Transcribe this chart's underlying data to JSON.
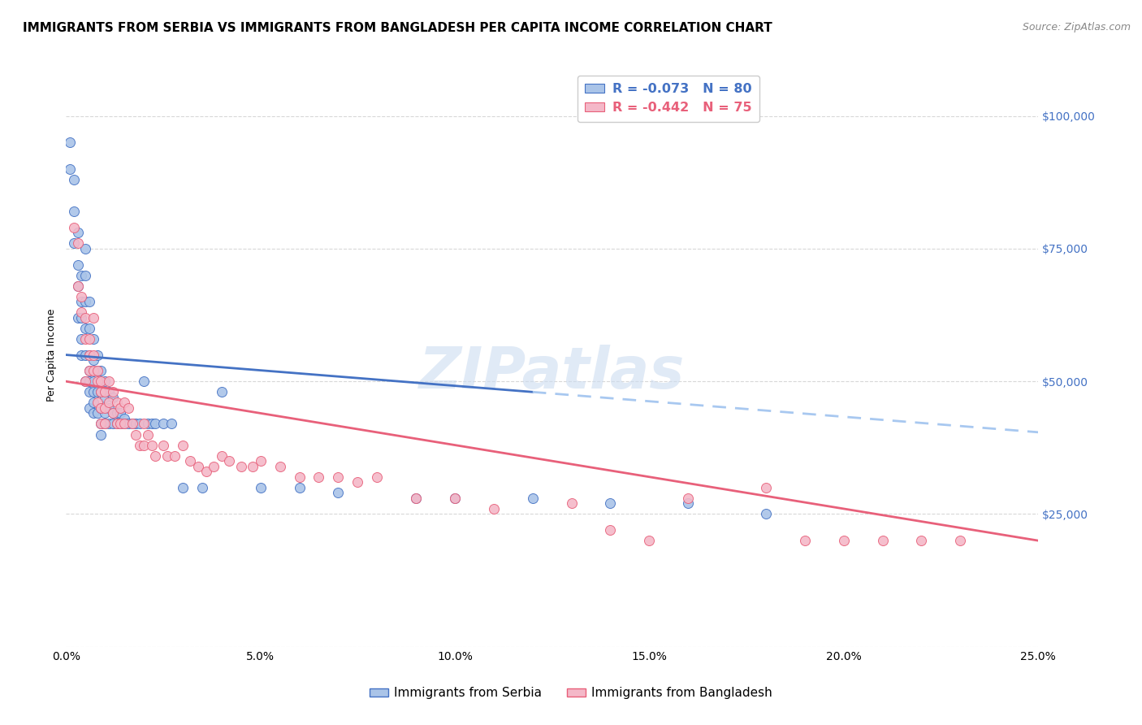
{
  "title": "IMMIGRANTS FROM SERBIA VS IMMIGRANTS FROM BANGLADESH PER CAPITA INCOME CORRELATION CHART",
  "source": "Source: ZipAtlas.com",
  "ylabel": "Per Capita Income",
  "watermark": "ZIPatlas",
  "serbia_R": -0.073,
  "serbia_N": 80,
  "bangladesh_R": -0.442,
  "bangladesh_N": 75,
  "serbia_color": "#aac4e8",
  "bangladesh_color": "#f4b8c8",
  "serbia_line_color": "#4472c4",
  "bangladesh_line_color": "#e8607a",
  "trendline_extend_color_serbia": "#a8c8f0",
  "xlim": [
    0.0,
    0.25
  ],
  "ylim": [
    0,
    110000
  ],
  "yticks": [
    0,
    25000,
    50000,
    75000,
    100000
  ],
  "ytick_labels": [
    "",
    "$25,000",
    "$50,000",
    "$75,000",
    "$100,000"
  ],
  "serbia_x": [
    0.001,
    0.001,
    0.002,
    0.002,
    0.002,
    0.003,
    0.003,
    0.003,
    0.003,
    0.004,
    0.004,
    0.004,
    0.004,
    0.004,
    0.005,
    0.005,
    0.005,
    0.005,
    0.005,
    0.005,
    0.006,
    0.006,
    0.006,
    0.006,
    0.006,
    0.006,
    0.006,
    0.007,
    0.007,
    0.007,
    0.007,
    0.007,
    0.007,
    0.008,
    0.008,
    0.008,
    0.008,
    0.009,
    0.009,
    0.009,
    0.009,
    0.009,
    0.01,
    0.01,
    0.01,
    0.01,
    0.011,
    0.011,
    0.011,
    0.012,
    0.012,
    0.012,
    0.013,
    0.013,
    0.014,
    0.014,
    0.015,
    0.015,
    0.016,
    0.017,
    0.018,
    0.019,
    0.02,
    0.021,
    0.022,
    0.023,
    0.025,
    0.027,
    0.03,
    0.035,
    0.04,
    0.05,
    0.06,
    0.07,
    0.09,
    0.1,
    0.12,
    0.14,
    0.16,
    0.18
  ],
  "serbia_y": [
    95000,
    90000,
    88000,
    82000,
    76000,
    78000,
    72000,
    68000,
    62000,
    70000,
    65000,
    62000,
    58000,
    55000,
    75000,
    70000,
    65000,
    60000,
    55000,
    50000,
    65000,
    60000,
    55000,
    52000,
    50000,
    48000,
    45000,
    58000,
    54000,
    50000,
    48000,
    46000,
    44000,
    55000,
    52000,
    48000,
    44000,
    52000,
    48000,
    45000,
    42000,
    40000,
    50000,
    47000,
    44000,
    42000,
    48000,
    45000,
    42000,
    47000,
    44000,
    42000,
    44000,
    42000,
    44000,
    42000,
    43000,
    42000,
    42000,
    42000,
    42000,
    42000,
    50000,
    42000,
    42000,
    42000,
    42000,
    42000,
    30000,
    30000,
    48000,
    30000,
    30000,
    29000,
    28000,
    28000,
    28000,
    27000,
    27000,
    25000
  ],
  "bangladesh_x": [
    0.002,
    0.003,
    0.003,
    0.004,
    0.004,
    0.005,
    0.005,
    0.005,
    0.006,
    0.006,
    0.006,
    0.007,
    0.007,
    0.007,
    0.008,
    0.008,
    0.008,
    0.009,
    0.009,
    0.009,
    0.009,
    0.01,
    0.01,
    0.01,
    0.011,
    0.011,
    0.012,
    0.012,
    0.013,
    0.013,
    0.014,
    0.014,
    0.015,
    0.015,
    0.016,
    0.017,
    0.018,
    0.019,
    0.02,
    0.02,
    0.021,
    0.022,
    0.023,
    0.025,
    0.026,
    0.028,
    0.03,
    0.032,
    0.034,
    0.036,
    0.038,
    0.04,
    0.042,
    0.045,
    0.048,
    0.05,
    0.055,
    0.06,
    0.065,
    0.07,
    0.075,
    0.08,
    0.09,
    0.1,
    0.11,
    0.13,
    0.14,
    0.15,
    0.16,
    0.18,
    0.19,
    0.2,
    0.21,
    0.22,
    0.23
  ],
  "bangladesh_y": [
    79000,
    76000,
    68000,
    66000,
    63000,
    62000,
    58000,
    50000,
    58000,
    55000,
    52000,
    55000,
    52000,
    62000,
    52000,
    50000,
    46000,
    50000,
    48000,
    45000,
    42000,
    48000,
    45000,
    42000,
    50000,
    46000,
    48000,
    44000,
    46000,
    42000,
    45000,
    42000,
    46000,
    42000,
    45000,
    42000,
    40000,
    38000,
    42000,
    38000,
    40000,
    38000,
    36000,
    38000,
    36000,
    36000,
    38000,
    35000,
    34000,
    33000,
    34000,
    36000,
    35000,
    34000,
    34000,
    35000,
    34000,
    32000,
    32000,
    32000,
    31000,
    32000,
    28000,
    28000,
    26000,
    27000,
    22000,
    20000,
    28000,
    30000,
    20000,
    20000,
    20000,
    20000,
    20000
  ],
  "grid_color": "#d8d8d8",
  "background_color": "#ffffff",
  "title_fontsize": 11,
  "axis_label_fontsize": 9,
  "tick_fontsize": 10,
  "source_fontsize": 9,
  "watermark_fontsize": 52,
  "watermark_color": "#ccdcf0",
  "watermark_alpha": 0.6,
  "serbia_trendline_x0": 0.0,
  "serbia_trendline_y0": 55000,
  "serbia_trendline_x1": 0.12,
  "serbia_trendline_y1": 48000,
  "serbia_trendline_solid_end": 0.12,
  "serbia_trendline_dash_end": 0.25,
  "bangladesh_trendline_x0": 0.0,
  "bangladesh_trendline_y0": 50000,
  "bangladesh_trendline_x1": 0.25,
  "bangladesh_trendline_y1": 20000
}
